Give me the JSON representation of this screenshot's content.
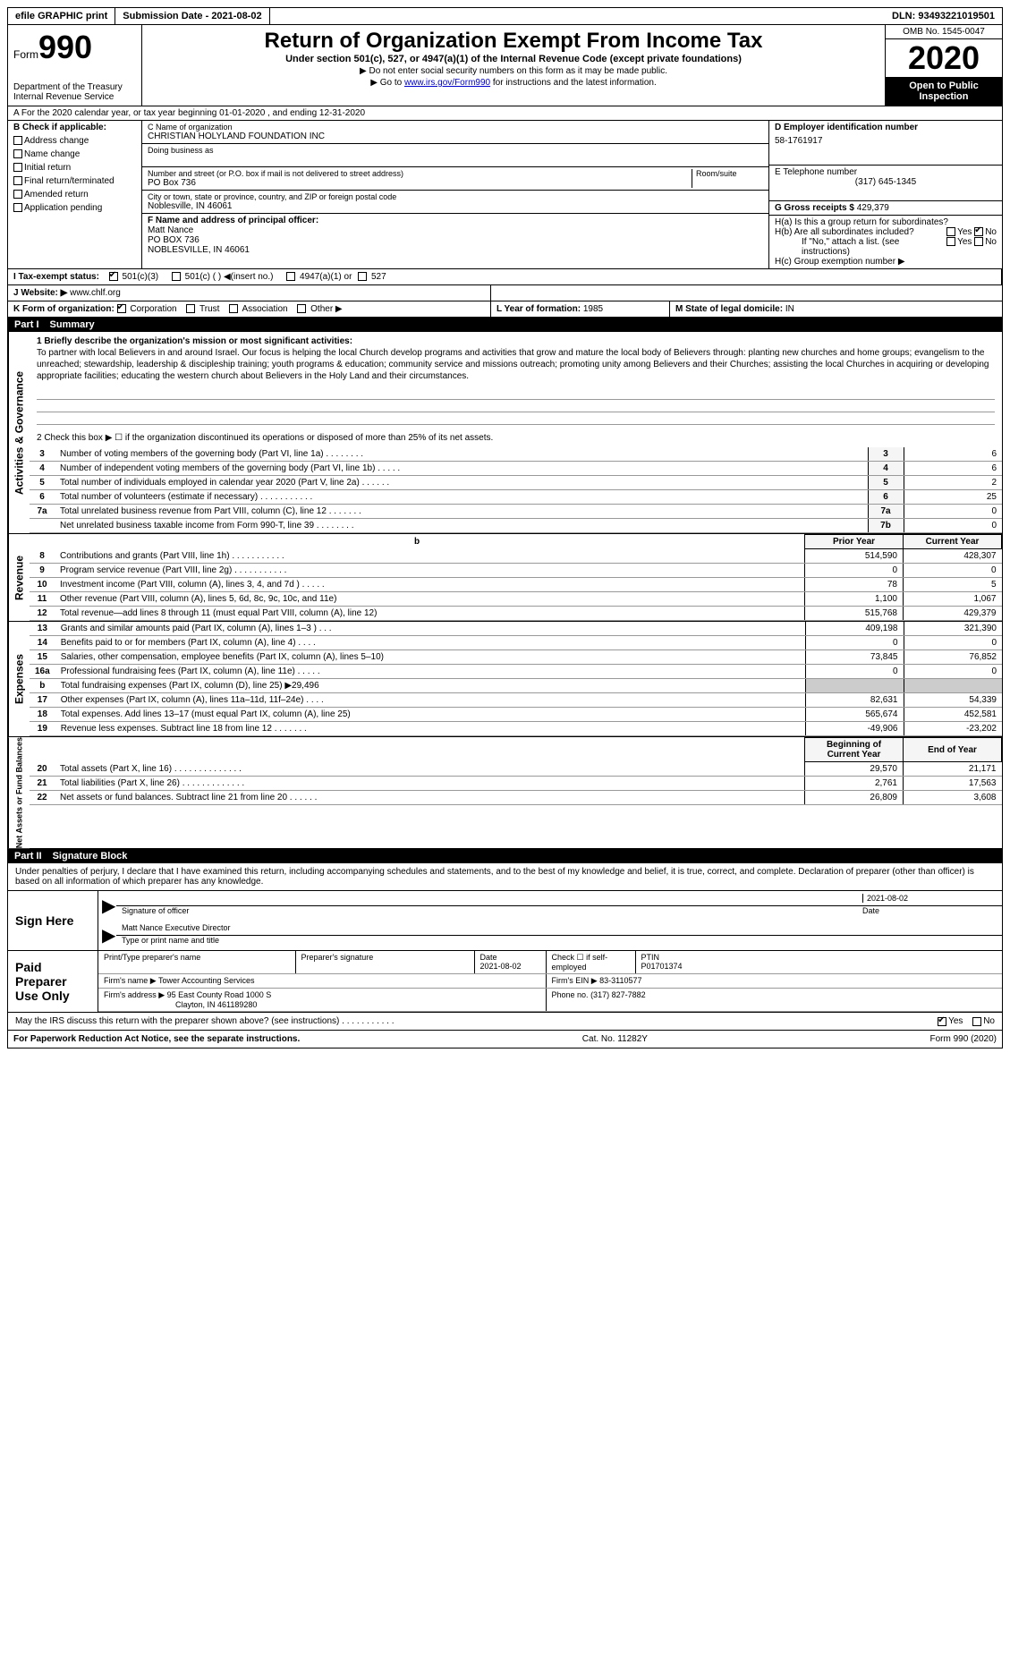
{
  "top": {
    "efile": "efile GRAPHIC print",
    "submission": "Submission Date - 2021-08-02",
    "dln": "DLN: 93493221019501"
  },
  "header": {
    "form_label": "Form",
    "form_num": "990",
    "dept": "Department of the Treasury",
    "irs": "Internal Revenue Service",
    "title": "Return of Organization Exempt From Income Tax",
    "subtitle": "Under section 501(c), 527, or 4947(a)(1) of the Internal Revenue Code (except private foundations)",
    "note1": "▶ Do not enter social security numbers on this form as it may be made public.",
    "note2_a": "▶ Go to ",
    "note2_link": "www.irs.gov/Form990",
    "note2_b": " for instructions and the latest information.",
    "omb": "OMB No. 1545-0047",
    "year": "2020",
    "open": "Open to Public Inspection"
  },
  "row_a": "A For the 2020 calendar year, or tax year beginning 01-01-2020   , and ending 12-31-2020",
  "box_b": {
    "label": "B Check if applicable:",
    "items": [
      "Address change",
      "Name change",
      "Initial return",
      "Final return/terminated",
      "Amended return",
      "Application pending"
    ]
  },
  "box_c": {
    "name_label": "C Name of organization",
    "name": "CHRISTIAN HOLYLAND FOUNDATION INC",
    "dba_label": "Doing business as",
    "addr_label": "Number and street (or P.O. box if mail is not delivered to street address)",
    "suite_label": "Room/suite",
    "addr": "PO Box 736",
    "city_label": "City or town, state or province, country, and ZIP or foreign postal code",
    "city": "Noblesville, IN  46061"
  },
  "box_d": {
    "label": "D Employer identification number",
    "value": "58-1761917"
  },
  "box_e": {
    "label": "E Telephone number",
    "value": "(317) 645-1345"
  },
  "box_g": {
    "label": "G Gross receipts $",
    "value": "429,379"
  },
  "box_f": {
    "label": "F Name and address of principal officer:",
    "name": "Matt Nance",
    "addr1": "PO BOX 736",
    "addr2": "NOBLESVILLE, IN  46061"
  },
  "box_h": {
    "ha": "H(a)  Is this a group return for subordinates?",
    "hb": "H(b)  Are all subordinates included?",
    "hb_note": "If \"No,\" attach a list. (see instructions)",
    "hc": "H(c)  Group exemption number ▶",
    "yes": "Yes",
    "no": "No"
  },
  "row_i": {
    "label": "I  Tax-exempt status:",
    "c3": "501(c)(3)",
    "c": "501(c) (  ) ◀(insert no.)",
    "a1": "4947(a)(1) or",
    "s527": "527"
  },
  "row_j": {
    "label": "J  Website: ▶",
    "value": "www.chlf.org"
  },
  "row_k": {
    "label": "K Form of organization:",
    "corp": "Corporation",
    "trust": "Trust",
    "assoc": "Association",
    "other": "Other ▶"
  },
  "row_l": {
    "label": "L Year of formation:",
    "value": "1985"
  },
  "row_m": {
    "label": "M State of legal domicile:",
    "value": "IN"
  },
  "part1": {
    "header": "Part I",
    "title": "Summary",
    "line1_label": "1  Briefly describe the organization's mission or most significant activities:",
    "mission": "To partner with local Believers in and around Israel. Our focus is helping the local Church develop programs and activities that grow and mature the local body of Believers through: planting new churches and home groups; evangelism to the unreached; stewardship, leadership & discipleship training; youth programs & education; community service and missions outreach; promoting unity among Believers and their Churches; assisting the local Churches in acquiring or developing appropriate facilities; educating the western church about Believers in the Holy Land and their circumstances.",
    "line2": "2  Check this box ▶ ☐ if the organization discontinued its operations or disposed of more than 25% of its net assets.",
    "activities_label": "Activities & Governance",
    "gov_rows": [
      {
        "n": "3",
        "text": "Number of voting members of the governing body (Part VI, line 1a)  .  .  .  .  .  .  .  .",
        "box": "3",
        "val": "6"
      },
      {
        "n": "4",
        "text": "Number of independent voting members of the governing body (Part VI, line 1b)  .  .  .  .  .",
        "box": "4",
        "val": "6"
      },
      {
        "n": "5",
        "text": "Total number of individuals employed in calendar year 2020 (Part V, line 2a)  .  .  .  .  .  .",
        "box": "5",
        "val": "2"
      },
      {
        "n": "6",
        "text": "Total number of volunteers (estimate if necessary)  .  .  .  .  .  .  .  .  .  .  .",
        "box": "6",
        "val": "25"
      },
      {
        "n": "7a",
        "text": "Total unrelated business revenue from Part VIII, column (C), line 12  .  .  .  .  .  .  .",
        "box": "7a",
        "val": "0"
      },
      {
        "n": "",
        "text": "Net unrelated business taxable income from Form 990-T, line 39  .  .  .  .  .  .  .  .",
        "box": "7b",
        "val": "0"
      }
    ],
    "revenue_label": "Revenue",
    "prior_year": "Prior Year",
    "current_year": "Current Year",
    "rev_rows": [
      {
        "n": "8",
        "text": "Contributions and grants (Part VIII, line 1h)  .  .  .  .  .  .  .  .  .  .  .",
        "py": "514,590",
        "cy": "428,307"
      },
      {
        "n": "9",
        "text": "Program service revenue (Part VIII, line 2g)  .  .  .  .  .  .  .  .  .  .  .",
        "py": "0",
        "cy": "0"
      },
      {
        "n": "10",
        "text": "Investment income (Part VIII, column (A), lines 3, 4, and 7d )  .  .  .  .  .",
        "py": "78",
        "cy": "5"
      },
      {
        "n": "11",
        "text": "Other revenue (Part VIII, column (A), lines 5, 6d, 8c, 9c, 10c, and 11e)",
        "py": "1,100",
        "cy": "1,067"
      },
      {
        "n": "12",
        "text": "Total revenue—add lines 8 through 11 (must equal Part VIII, column (A), line 12)",
        "py": "515,768",
        "cy": "429,379"
      }
    ],
    "expenses_label": "Expenses",
    "exp_rows": [
      {
        "n": "13",
        "text": "Grants and similar amounts paid (Part IX, column (A), lines 1–3 )  .  .  .",
        "py": "409,198",
        "cy": "321,390"
      },
      {
        "n": "14",
        "text": "Benefits paid to or for members (Part IX, column (A), line 4)  .  .  .  .",
        "py": "0",
        "cy": "0"
      },
      {
        "n": "15",
        "text": "Salaries, other compensation, employee benefits (Part IX, column (A), lines 5–10)",
        "py": "73,845",
        "cy": "76,852"
      },
      {
        "n": "16a",
        "text": "Professional fundraising fees (Part IX, column (A), line 11e)  .  .  .  .  .",
        "py": "0",
        "cy": "0"
      },
      {
        "n": "b",
        "text": "Total fundraising expenses (Part IX, column (D), line 25) ▶29,496",
        "py": "",
        "cy": "",
        "shaded": true
      },
      {
        "n": "17",
        "text": "Other expenses (Part IX, column (A), lines 11a–11d, 11f–24e)  .  .  .  .",
        "py": "82,631",
        "cy": "54,339"
      },
      {
        "n": "18",
        "text": "Total expenses. Add lines 13–17 (must equal Part IX, column (A), line 25)",
        "py": "565,674",
        "cy": "452,581"
      },
      {
        "n": "19",
        "text": "Revenue less expenses. Subtract line 18 from line 12  .  .  .  .  .  .  .",
        "py": "-49,906",
        "cy": "-23,202"
      }
    ],
    "net_label": "Net Assets or Fund Balances",
    "beg_year": "Beginning of Current Year",
    "end_year": "End of Year",
    "net_rows": [
      {
        "n": "20",
        "text": "Total assets (Part X, line 16)  .  .  .  .  .  .  .  .  .  .  .  .  .  .",
        "py": "29,570",
        "cy": "21,171"
      },
      {
        "n": "21",
        "text": "Total liabilities (Part X, line 26)  .  .  .  .  .  .  .  .  .  .  .  .  .",
        "py": "2,761",
        "cy": "17,563"
      },
      {
        "n": "22",
        "text": "Net assets or fund balances. Subtract line 21 from line 20  .  .  .  .  .  .",
        "py": "26,809",
        "cy": "3,608"
      }
    ]
  },
  "part2": {
    "header": "Part II",
    "title": "Signature Block",
    "declaration": "Under penalties of perjury, I declare that I have examined this return, including accompanying schedules and statements, and to the best of my knowledge and belief, it is true, correct, and complete. Declaration of preparer (other than officer) is based on all information of which preparer has any knowledge.",
    "sign_here": "Sign Here",
    "sig_officer": "Signature of officer",
    "sig_date": "2021-08-02",
    "date_label": "Date",
    "officer_name": "Matt Nance Executive Director",
    "name_title_label": "Type or print name and title",
    "paid_prep": "Paid Preparer Use Only",
    "prep_name_label": "Print/Type preparer's name",
    "prep_sig_label": "Preparer's signature",
    "prep_date_label": "Date",
    "prep_date": "2021-08-02",
    "check_if": "Check ☐ if self-employed",
    "ptin_label": "PTIN",
    "ptin": "P01701374",
    "firm_name_label": "Firm's name    ▶",
    "firm_name": "Tower Accounting Services",
    "firm_ein_label": "Firm's EIN ▶",
    "firm_ein": "83-3110577",
    "firm_addr_label": "Firm's address ▶",
    "firm_addr1": "95 East County Road 1000 S",
    "firm_addr2": "Clayton, IN  461189280",
    "firm_phone_label": "Phone no.",
    "firm_phone": "(317) 827-7882",
    "discuss": "May the IRS discuss this return with the preparer shown above? (see instructions)  .  .  .  .  .  .  .  .  .  .  .",
    "yes": "Yes",
    "no": "No"
  },
  "footer": {
    "left": "For Paperwork Reduction Act Notice, see the separate instructions.",
    "mid": "Cat. No. 11282Y",
    "right": "Form 990 (2020)"
  }
}
